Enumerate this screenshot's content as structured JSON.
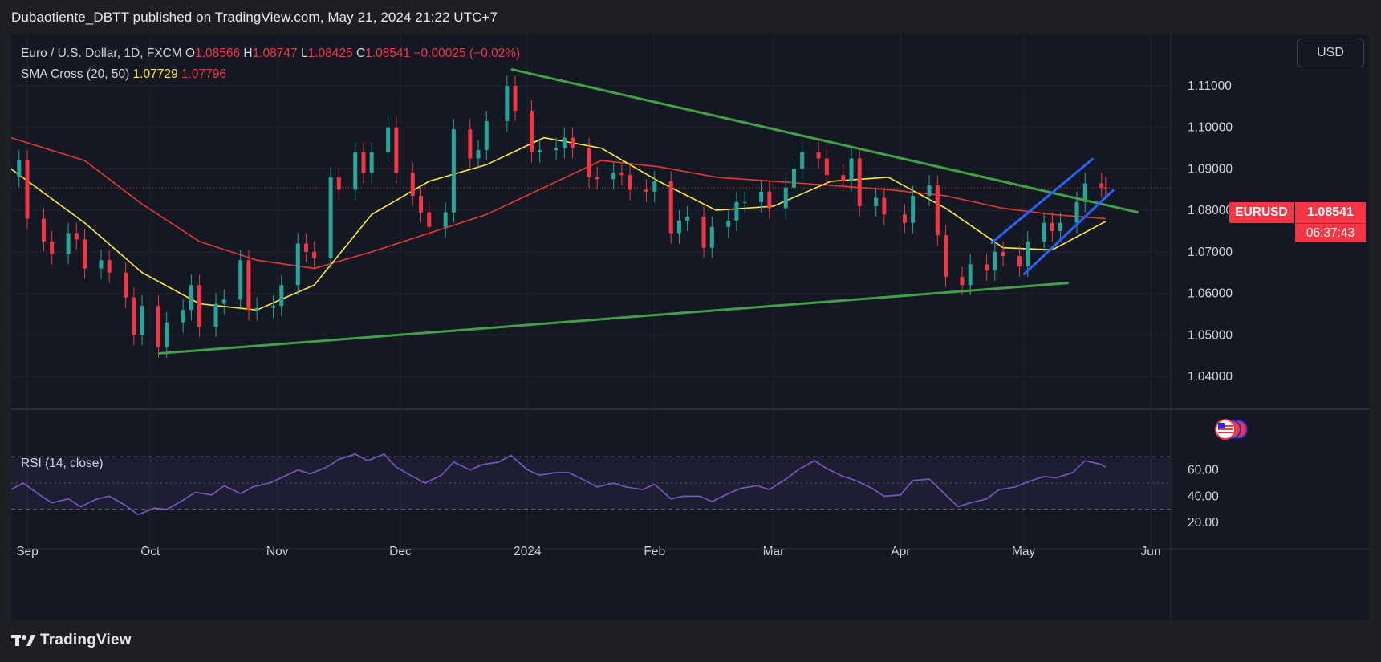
{
  "header": {
    "publisher": "Dubaotiente_DBTT published on TradingView.com, May 21, 2024 21:22 UTC+7"
  },
  "legend": {
    "symbol": "Euro / U.S. Dollar, 1D, FXCM",
    "o_label": "O",
    "o_value": "1.08566",
    "h_label": "H",
    "h_value": "1.08747",
    "l_label": "L",
    "l_value": "1.08425",
    "c_label": "C",
    "c_value": "1.08541",
    "change": "−0.00025 (−0.02%)",
    "sma_title": "SMA Cross (20, 50)",
    "sma_fast": "1.07729",
    "sma_slow": "1.07796"
  },
  "rsi": {
    "title": "RSI (14, close)"
  },
  "currency_button": "USD",
  "price_badge": {
    "symbol": "EURUSD",
    "price": "1.08541",
    "countdown": "06:37:43"
  },
  "footer": {
    "brand": "TradingView"
  },
  "colors": {
    "up": "#26a69a",
    "down": "#f23645",
    "sma_fast": "#ffeb3b",
    "sma_slow": "#e53935",
    "trendline": "#43a047",
    "channel": "#2962ff",
    "rsi": "#7e57c2",
    "background": "#141823"
  },
  "chart_data": {
    "type": "candlestick",
    "price_axis": {
      "ticks": [
        1.04,
        1.05,
        1.06,
        1.07,
        1.08,
        1.09,
        1.1,
        1.11
      ],
      "labels": [
        "1.04000",
        "1.05000",
        "1.06000",
        "1.07000",
        "1.08000",
        "1.09000",
        "1.10000",
        "1.11000"
      ]
    },
    "rsi_axis": {
      "ticks": [
        20,
        40,
        60
      ],
      "labels": [
        "20.00",
        "40.00",
        "60.00"
      ],
      "band": [
        30,
        70
      ],
      "mid": 50
    },
    "time_axis": {
      "labels": [
        {
          "text": "Sep",
          "date": "2023-09-01"
        },
        {
          "text": "Oct",
          "date": "2023-10-01"
        },
        {
          "text": "Nov",
          "date": "2023-11-01"
        },
        {
          "text": "Dec",
          "date": "2023-12-01"
        },
        {
          "text": "2024",
          "date": "2024-01-01"
        },
        {
          "text": "Feb",
          "date": "2024-02-01"
        },
        {
          "text": "Mar",
          "date": "2024-03-01"
        },
        {
          "text": "Apr",
          "date": "2024-04-01"
        },
        {
          "text": "May",
          "date": "2024-05-01"
        },
        {
          "text": "Jun",
          "date": "2024-06-01"
        }
      ]
    },
    "candles_close_path": [
      [
        "2023-08-28",
        1.088
      ],
      [
        "2023-08-30",
        1.092
      ],
      [
        "2023-09-01",
        1.078
      ],
      [
        "2023-09-05",
        1.0725
      ],
      [
        "2023-09-07",
        1.0695
      ],
      [
        "2023-09-11",
        1.0745
      ],
      [
        "2023-09-13",
        1.073
      ],
      [
        "2023-09-15",
        1.066
      ],
      [
        "2023-09-19",
        1.068
      ],
      [
        "2023-09-21",
        1.065
      ],
      [
        "2023-09-25",
        1.059
      ],
      [
        "2023-09-27",
        1.05
      ],
      [
        "2023-09-29",
        1.057
      ],
      [
        "2023-10-03",
        1.047
      ],
      [
        "2023-10-05",
        1.053
      ],
      [
        "2023-10-09",
        1.056
      ],
      [
        "2023-10-11",
        1.062
      ],
      [
        "2023-10-13",
        1.052
      ],
      [
        "2023-10-17",
        1.0575
      ],
      [
        "2023-10-19",
        1.0585
      ],
      [
        "2023-10-23",
        1.068
      ],
      [
        "2023-10-25",
        1.056
      ],
      [
        "2023-10-27",
        1.0565
      ],
      [
        "2023-10-31",
        1.057
      ],
      [
        "2023-11-02",
        1.062
      ],
      [
        "2023-11-06",
        1.072
      ],
      [
        "2023-11-08",
        1.07
      ],
      [
        "2023-11-10",
        1.0685
      ],
      [
        "2023-11-14",
        1.088
      ],
      [
        "2023-11-16",
        1.085
      ],
      [
        "2023-11-20",
        1.094
      ],
      [
        "2023-11-22",
        1.089
      ],
      [
        "2023-11-24",
        1.094
      ],
      [
        "2023-11-28",
        1.1
      ],
      [
        "2023-11-30",
        1.089
      ],
      [
        "2023-12-04",
        1.0835
      ],
      [
        "2023-12-06",
        1.0795
      ],
      [
        "2023-12-08",
        1.076
      ],
      [
        "2023-12-12",
        1.0795
      ],
      [
        "2023-12-14",
        1.0995
      ],
      [
        "2023-12-18",
        1.0925
      ],
      [
        "2023-12-20",
        1.0945
      ],
      [
        "2023-12-22",
        1.1015
      ],
      [
        "2023-12-27",
        1.11
      ],
      [
        "2023-12-29",
        1.104
      ],
      [
        "2024-01-02",
        1.094
      ],
      [
        "2024-01-04",
        1.0945
      ],
      [
        "2024-01-08",
        1.095
      ],
      [
        "2024-01-10",
        1.0975
      ],
      [
        "2024-01-12",
        1.095
      ],
      [
        "2024-01-16",
        1.088
      ],
      [
        "2024-01-18",
        1.0875
      ],
      [
        "2024-01-22",
        1.089
      ],
      [
        "2024-01-24",
        1.0885
      ],
      [
        "2024-01-26",
        1.085
      ],
      [
        "2024-01-30",
        1.0845
      ],
      [
        "2024-02-01",
        1.087
      ],
      [
        "2024-02-05",
        1.0745
      ],
      [
        "2024-02-07",
        1.0775
      ],
      [
        "2024-02-09",
        1.0785
      ],
      [
        "2024-02-13",
        1.071
      ],
      [
        "2024-02-15",
        1.076
      ],
      [
        "2024-02-19",
        1.0775
      ],
      [
        "2024-02-21",
        1.082
      ],
      [
        "2024-02-23",
        1.082
      ],
      [
        "2024-02-27",
        1.0845
      ],
      [
        "2024-02-29",
        1.0805
      ],
      [
        "2024-03-04",
        1.0855
      ],
      [
        "2024-03-06",
        1.09
      ],
      [
        "2024-03-08",
        1.094
      ],
      [
        "2024-03-12",
        1.0925
      ],
      [
        "2024-03-14",
        1.0885
      ],
      [
        "2024-03-18",
        1.087
      ],
      [
        "2024-03-20",
        1.0925
      ],
      [
        "2024-03-22",
        1.081
      ],
      [
        "2024-03-26",
        1.083
      ],
      [
        "2024-03-28",
        1.079
      ],
      [
        "2024-04-02",
        1.077
      ],
      [
        "2024-04-04",
        1.0835
      ],
      [
        "2024-04-08",
        1.086
      ],
      [
        "2024-04-10",
        1.074
      ],
      [
        "2024-04-12",
        1.064
      ],
      [
        "2024-04-16",
        1.062
      ],
      [
        "2024-04-18",
        1.067
      ],
      [
        "2024-04-22",
        1.0655
      ],
      [
        "2024-04-24",
        1.07
      ],
      [
        "2024-04-26",
        1.069
      ],
      [
        "2024-04-30",
        1.0665
      ],
      [
        "2024-05-02",
        1.0725
      ],
      [
        "2024-05-06",
        1.077
      ],
      [
        "2024-05-08",
        1.075
      ],
      [
        "2024-05-10",
        1.077
      ],
      [
        "2024-05-14",
        1.082
      ],
      [
        "2024-05-16",
        1.0865
      ],
      [
        "2024-05-20",
        1.0855
      ],
      [
        "2024-05-21",
        1.0854
      ]
    ],
    "sma_fast_series": [
      [
        "2023-08-28",
        1.09
      ],
      [
        "2023-09-15",
        1.077
      ],
      [
        "2023-09-29",
        1.065
      ],
      [
        "2023-10-13",
        1.0575
      ],
      [
        "2023-10-27",
        1.056
      ],
      [
        "2023-11-10",
        1.062
      ],
      [
        "2023-11-24",
        1.079
      ],
      [
        "2023-12-08",
        1.087
      ],
      [
        "2023-12-22",
        1.091
      ],
      [
        "2024-01-05",
        1.0975
      ],
      [
        "2024-01-19",
        1.095
      ],
      [
        "2024-02-02",
        1.087
      ],
      [
        "2024-02-16",
        1.08
      ],
      [
        "2024-03-01",
        1.081
      ],
      [
        "2024-03-15",
        1.087
      ],
      [
        "2024-03-29",
        1.088
      ],
      [
        "2024-04-12",
        1.0805
      ],
      [
        "2024-04-26",
        1.071
      ],
      [
        "2024-05-08",
        1.0705
      ],
      [
        "2024-05-21",
        1.0773
      ]
    ],
    "sma_slow_series": [
      [
        "2023-08-28",
        1.0975
      ],
      [
        "2023-09-15",
        1.092
      ],
      [
        "2023-09-29",
        1.0815
      ],
      [
        "2023-10-13",
        1.0725
      ],
      [
        "2023-10-27",
        1.068
      ],
      [
        "2023-11-10",
        1.066
      ],
      [
        "2023-11-24",
        1.07
      ],
      [
        "2023-12-08",
        1.0745
      ],
      [
        "2023-12-22",
        1.079
      ],
      [
        "2024-01-05",
        1.0855
      ],
      [
        "2024-01-19",
        1.092
      ],
      [
        "2024-02-02",
        1.0905
      ],
      [
        "2024-02-16",
        1.088
      ],
      [
        "2024-03-01",
        1.087
      ],
      [
        "2024-03-15",
        1.086
      ],
      [
        "2024-03-29",
        1.085
      ],
      [
        "2024-04-12",
        1.0835
      ],
      [
        "2024-04-26",
        1.0805
      ],
      [
        "2024-05-08",
        1.079
      ],
      [
        "2024-05-21",
        1.078
      ]
    ],
    "trendlines": [
      {
        "from": [
          "2023-12-28",
          1.114
        ],
        "to": [
          "2024-05-29",
          1.0795
        ]
      },
      {
        "from": [
          "2023-10-03",
          1.0455
        ],
        "to": [
          "2024-05-12",
          1.0625
        ]
      }
    ],
    "channel": [
      {
        "from": [
          "2024-04-23",
          1.072
        ],
        "to": [
          "2024-05-18",
          1.0925
        ]
      },
      {
        "from": [
          "2024-05-01",
          1.0645
        ],
        "to": [
          "2024-05-23",
          1.085
        ]
      }
    ],
    "last_price": 1.08541,
    "rsi_series": [
      [
        "2023-08-28",
        45
      ],
      [
        "2023-08-31",
        50
      ],
      [
        "2023-09-04",
        41
      ],
      [
        "2023-09-07",
        35
      ],
      [
        "2023-09-11",
        38
      ],
      [
        "2023-09-14",
        32
      ],
      [
        "2023-09-18",
        38
      ],
      [
        "2023-09-21",
        40
      ],
      [
        "2023-09-25",
        33
      ],
      [
        "2023-09-28",
        26
      ],
      [
        "2023-10-02",
        31
      ],
      [
        "2023-10-05",
        30
      ],
      [
        "2023-10-09",
        37
      ],
      [
        "2023-10-12",
        43
      ],
      [
        "2023-10-16",
        41
      ],
      [
        "2023-10-19",
        48
      ],
      [
        "2023-10-23",
        42
      ],
      [
        "2023-10-26",
        47
      ],
      [
        "2023-10-30",
        50
      ],
      [
        "2023-11-02",
        54
      ],
      [
        "2023-11-06",
        60
      ],
      [
        "2023-11-09",
        57
      ],
      [
        "2023-11-13",
        62
      ],
      [
        "2023-11-16",
        68
      ],
      [
        "2023-11-20",
        72
      ],
      [
        "2023-11-23",
        67
      ],
      [
        "2023-11-27",
        72
      ],
      [
        "2023-11-30",
        62
      ],
      [
        "2023-12-04",
        55
      ],
      [
        "2023-12-07",
        50
      ],
      [
        "2023-12-11",
        56
      ],
      [
        "2023-12-14",
        66
      ],
      [
        "2023-12-18",
        60
      ],
      [
        "2023-12-21",
        64
      ],
      [
        "2023-12-25",
        66
      ],
      [
        "2023-12-28",
        71
      ],
      [
        "2024-01-01",
        60
      ],
      [
        "2024-01-04",
        56
      ],
      [
        "2024-01-08",
        58
      ],
      [
        "2024-01-11",
        58
      ],
      [
        "2024-01-15",
        52
      ],
      [
        "2024-01-18",
        47
      ],
      [
        "2024-01-22",
        50
      ],
      [
        "2024-01-25",
        47
      ],
      [
        "2024-01-29",
        45
      ],
      [
        "2024-02-01",
        49
      ],
      [
        "2024-02-05",
        38
      ],
      [
        "2024-02-08",
        40
      ],
      [
        "2024-02-12",
        40
      ],
      [
        "2024-02-15",
        36
      ],
      [
        "2024-02-19",
        42
      ],
      [
        "2024-02-22",
        46
      ],
      [
        "2024-02-26",
        48
      ],
      [
        "2024-02-29",
        45
      ],
      [
        "2024-03-04",
        53
      ],
      [
        "2024-03-07",
        60
      ],
      [
        "2024-03-11",
        67
      ],
      [
        "2024-03-14",
        61
      ],
      [
        "2024-03-18",
        55
      ],
      [
        "2024-03-21",
        52
      ],
      [
        "2024-03-25",
        46
      ],
      [
        "2024-03-28",
        40
      ],
      [
        "2024-04-01",
        41
      ],
      [
        "2024-04-04",
        52
      ],
      [
        "2024-04-08",
        53
      ],
      [
        "2024-04-11",
        44
      ],
      [
        "2024-04-15",
        32
      ],
      [
        "2024-04-18",
        35
      ],
      [
        "2024-04-22",
        38
      ],
      [
        "2024-04-25",
        45
      ],
      [
        "2024-04-29",
        47
      ],
      [
        "2024-05-02",
        51
      ],
      [
        "2024-05-06",
        55
      ],
      [
        "2024-05-09",
        54
      ],
      [
        "2024-05-13",
        58
      ],
      [
        "2024-05-16",
        67
      ],
      [
        "2024-05-20",
        64
      ],
      [
        "2024-05-21",
        62
      ]
    ]
  }
}
